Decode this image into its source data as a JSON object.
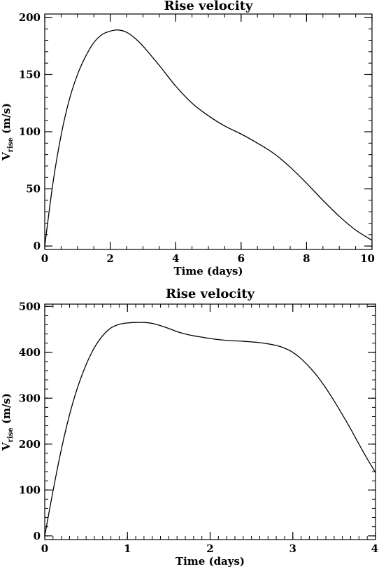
{
  "chart_data": [
    {
      "type": "line",
      "title": "Rise velocity",
      "xlabel": "Time (days)",
      "ylabel_main": "V",
      "ylabel_sub": "rise",
      "ylabel_unit": " (m/s)",
      "xlim": [
        0,
        10
      ],
      "ylim": [
        -3,
        203
      ],
      "xticks": [
        0,
        2,
        4,
        6,
        8,
        10
      ],
      "yticks": [
        0,
        50,
        100,
        150,
        200
      ],
      "x_minor_step": 0.5,
      "y_minor_step": 10,
      "grid": false,
      "series": [
        {
          "x": [
            0,
            0.25,
            0.5,
            0.75,
            1,
            1.25,
            1.5,
            1.75,
            2,
            2.25,
            2.5,
            2.75,
            3,
            3.5,
            4,
            4.5,
            5,
            5.5,
            6,
            6.5,
            7,
            7.5,
            8,
            8.5,
            9,
            9.5,
            10
          ],
          "y": [
            0,
            55,
            97,
            128,
            150,
            166,
            178,
            185,
            188,
            189,
            187,
            182,
            175,
            158,
            140,
            125,
            114,
            105,
            98,
            90,
            81,
            69,
            55,
            40,
            26,
            14,
            5
          ]
        }
      ]
    },
    {
      "type": "line",
      "title": "Rise velocity",
      "xlabel": "Time (days)",
      "ylabel_main": "V",
      "ylabel_sub": "rise",
      "ylabel_unit": " (m/s)",
      "xlim": [
        0,
        4
      ],
      "ylim": [
        -8,
        505
      ],
      "xticks": [
        0,
        1,
        2,
        3,
        4
      ],
      "yticks": [
        0,
        100,
        200,
        300,
        400,
        500
      ],
      "x_minor_step": 0.1,
      "y_minor_step": 20,
      "grid": false,
      "series": [
        {
          "x": [
            0,
            0.1,
            0.2,
            0.3,
            0.4,
            0.5,
            0.6,
            0.7,
            0.8,
            0.9,
            1.0,
            1.1,
            1.2,
            1.3,
            1.4,
            1.5,
            1.6,
            1.7,
            1.8,
            1.9,
            2.0,
            2.2,
            2.4,
            2.6,
            2.8,
            2.9,
            3.0,
            3.1,
            3.2,
            3.3,
            3.4,
            3.5,
            3.6,
            3.7,
            3.8,
            3.9,
            4.0
          ],
          "y": [
            0,
            98,
            188,
            264,
            325,
            373,
            410,
            436,
            453,
            461,
            464,
            465,
            465,
            463,
            458,
            452,
            445,
            440,
            436,
            433,
            430,
            426,
            424,
            421,
            415,
            409,
            400,
            386,
            368,
            347,
            322,
            294,
            264,
            233,
            200,
            168,
            138
          ]
        }
      ]
    }
  ]
}
